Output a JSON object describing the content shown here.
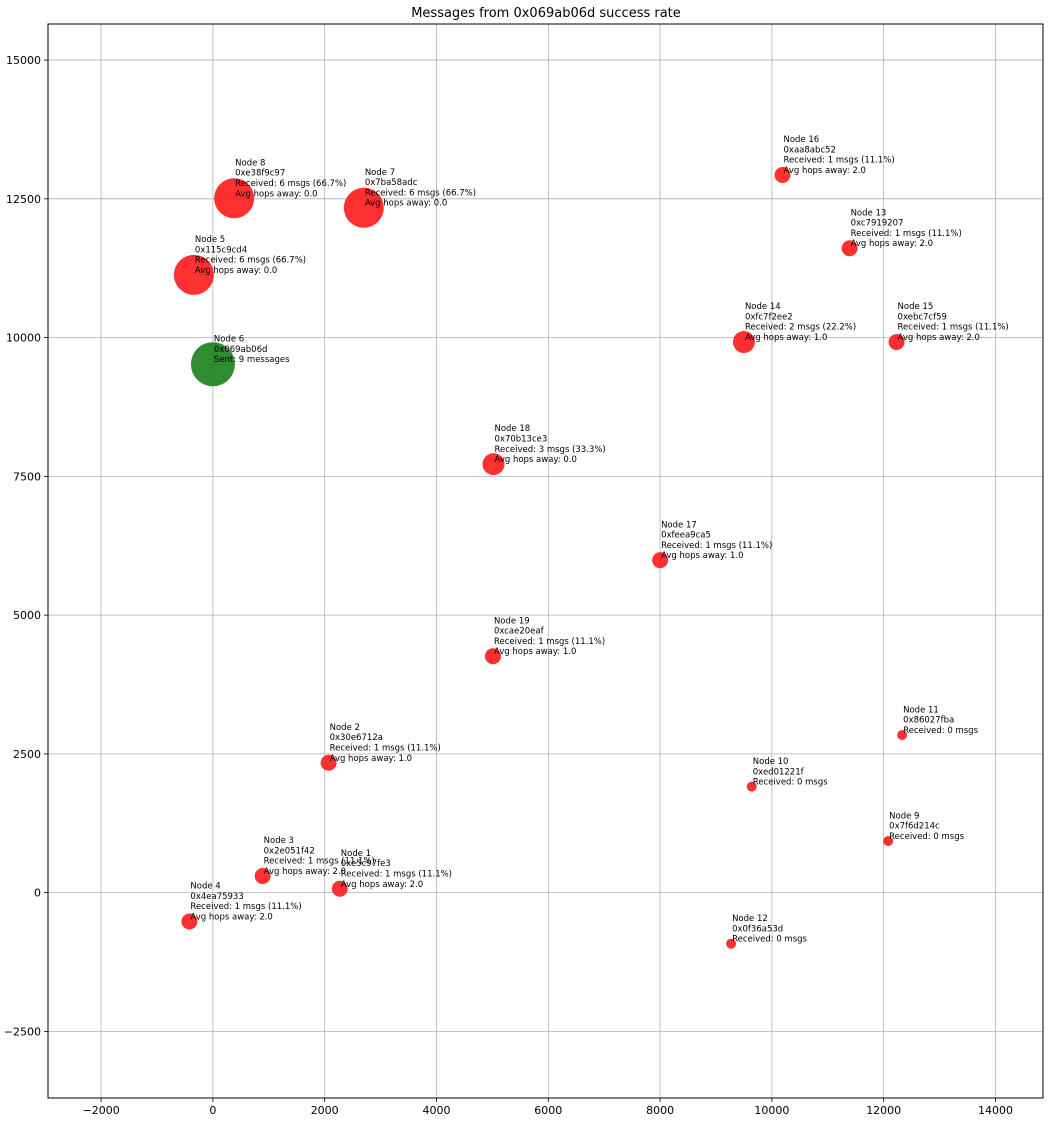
{
  "chart_data": {
    "type": "scatter",
    "title": "Messages from 0x069ab06d success rate",
    "xlabel": "",
    "ylabel": "",
    "xlim": [
      -2950,
      14850
    ],
    "ylim": [
      -3700,
      15650
    ],
    "x_ticks": [
      -2000,
      0,
      2000,
      4000,
      6000,
      8000,
      10000,
      12000,
      14000
    ],
    "x_tick_labels": [
      "−2000",
      "0",
      "2000",
      "4000",
      "6000",
      "8000",
      "10000",
      "12000",
      "14000"
    ],
    "y_ticks": [
      -2500,
      0,
      2500,
      5000,
      7500,
      10000,
      12500,
      15000
    ],
    "y_tick_labels": [
      "−2500",
      "0",
      "2500",
      "5000",
      "7500",
      "10000",
      "12500",
      "15000"
    ],
    "grid": true,
    "colors": {
      "sender": "#188018",
      "receiver": "#ff1a1a"
    },
    "points": [
      {
        "x": 0,
        "y": 9520,
        "size": 4,
        "role": "sender",
        "label": [
          "Node 6",
          "0x069ab06d",
          "Sent: 9 messages"
        ]
      },
      {
        "x": 2270,
        "y": 70,
        "size": 1,
        "role": "receiver",
        "label": [
          "Node 1",
          "0xe5c97fe3",
          "Received: 1 msgs (11.1%)",
          "Avg hops away: 2.0"
        ]
      },
      {
        "x": 2070,
        "y": 2340,
        "size": 1,
        "role": "receiver",
        "label": [
          "Node 2",
          "0x30e6712a",
          "Received: 1 msgs (11.1%)",
          "Avg hops away: 1.0"
        ]
      },
      {
        "x": 890,
        "y": 300,
        "size": 1,
        "role": "receiver",
        "label": [
          "Node 3",
          "0x2e051f42",
          "Received: 1 msgs (11.1%)",
          "Avg hops away: 2.0"
        ]
      },
      {
        "x": -420,
        "y": -520,
        "size": 1,
        "role": "receiver",
        "label": [
          "Node 4",
          "0x4ea75933",
          "Received: 1 msgs (11.1%)",
          "Avg hops away: 2.0"
        ]
      },
      {
        "x": -340,
        "y": 11130,
        "size": 3,
        "role": "receiver",
        "label": [
          "Node 5",
          "0x115c9cd4",
          "Received: 6 msgs (66.7%)",
          "Avg hops away: 0.0"
        ]
      },
      {
        "x": 2700,
        "y": 12340,
        "size": 3,
        "role": "receiver",
        "label": [
          "Node 7",
          "0x7ba58adc",
          "Received: 6 msgs (66.7%)",
          "Avg hops away: 0.0"
        ]
      },
      {
        "x": 380,
        "y": 12510,
        "size": 3,
        "role": "receiver",
        "label": [
          "Node 8",
          "0xe38f9c97",
          "Received: 6 msgs (66.7%)",
          "Avg hops away: 0.0"
        ]
      },
      {
        "x": 12080,
        "y": 930,
        "size": 0,
        "role": "receiver",
        "label": [
          "Node 9",
          "0x7f6d214c",
          "Received: 0 msgs"
        ]
      },
      {
        "x": 9640,
        "y": 1910,
        "size": 0,
        "role": "receiver",
        "label": [
          "Node 10",
          "0xed01221f",
          "Received: 0 msgs"
        ]
      },
      {
        "x": 12330,
        "y": 2840,
        "size": 0,
        "role": "receiver",
        "label": [
          "Node 11",
          "0x86027fba",
          "Received: 0 msgs"
        ]
      },
      {
        "x": 9270,
        "y": -920,
        "size": 0,
        "role": "receiver",
        "label": [
          "Node 12",
          "0x0f36a53d",
          "Received: 0 msgs"
        ]
      },
      {
        "x": 11390,
        "y": 11610,
        "size": 1,
        "role": "receiver",
        "label": [
          "Node 13",
          "0xc7919207",
          "Received: 1 msgs (11.1%)",
          "Avg hops away: 2.0"
        ]
      },
      {
        "x": 9500,
        "y": 9920,
        "size": 2,
        "role": "receiver",
        "label": [
          "Node 14",
          "0xfc7f2ee2",
          "Received: 2 msgs (22.2%)",
          "Avg hops away: 1.0"
        ]
      },
      {
        "x": 12230,
        "y": 9920,
        "size": 1,
        "role": "receiver",
        "label": [
          "Node 15",
          "0xebc7cf59",
          "Received: 1 msgs (11.1%)",
          "Avg hops away: 2.0"
        ]
      },
      {
        "x": 10190,
        "y": 12930,
        "size": 1,
        "role": "receiver",
        "label": [
          "Node 16",
          "0xaa8abc52",
          "Received: 1 msgs (11.1%)",
          "Avg hops away: 2.0"
        ]
      },
      {
        "x": 8000,
        "y": 5990,
        "size": 1,
        "role": "receiver",
        "label": [
          "Node 17",
          "0xfeea9ca5",
          "Received: 1 msgs (11.1%)",
          "Avg hops away: 1.0"
        ]
      },
      {
        "x": 5020,
        "y": 7720,
        "size": 2,
        "role": "receiver",
        "label": [
          "Node 18",
          "0x70b13ce3",
          "Received: 3 msgs (33.3%)",
          "Avg hops away: 0.0"
        ]
      },
      {
        "x": 5010,
        "y": 4260,
        "size": 1,
        "role": "receiver",
        "label": [
          "Node 19",
          "0xcae20eaf",
          "Received: 1 msgs (11.1%)",
          "Avg hops away: 1.0"
        ]
      }
    ]
  }
}
